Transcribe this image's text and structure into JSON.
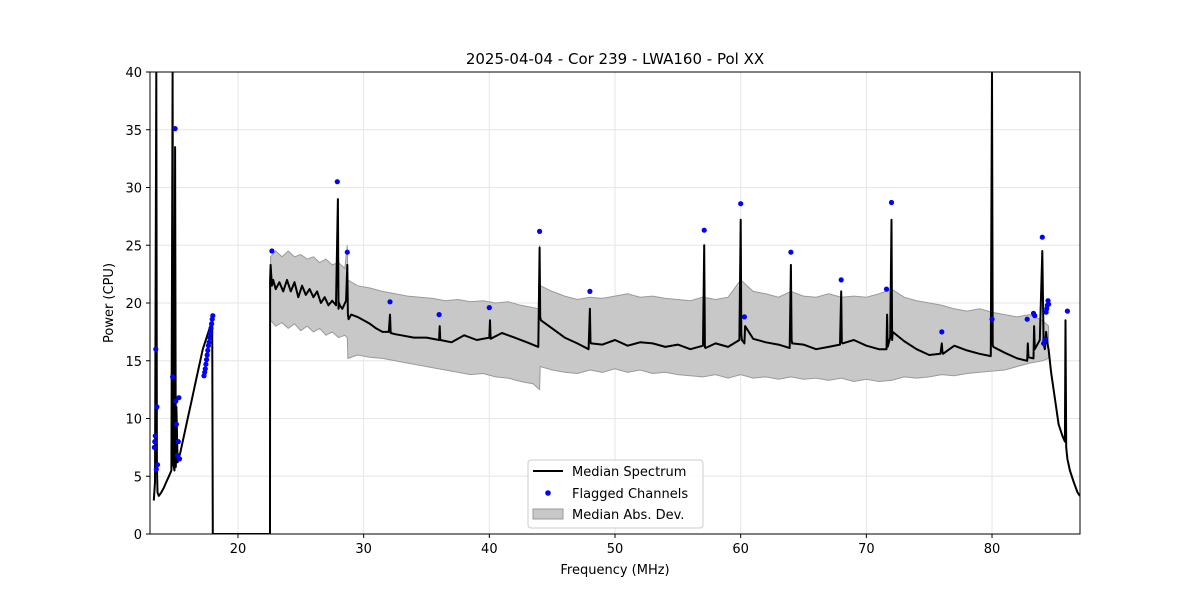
{
  "chart_data": {
    "type": "line",
    "title": "2025-04-04 - Cor 239 - LWA160 - Pol XX",
    "xlabel": "Frequency (MHz)",
    "ylabel": "Power (CPU)",
    "xlim": [
      13.0,
      87.0
    ],
    "ylim": [
      0,
      40
    ],
    "xticks": [
      20,
      30,
      40,
      50,
      60,
      70,
      80
    ],
    "yticks": [
      0,
      5,
      10,
      15,
      20,
      25,
      30,
      35,
      40
    ],
    "xtick_labels": [
      "20",
      "30",
      "40",
      "50",
      "60",
      "70",
      "80"
    ],
    "ytick_labels": [
      "0",
      "5",
      "10",
      "15",
      "20",
      "25",
      "30",
      "35",
      "40"
    ],
    "grid": true,
    "legend_position": "lower-center",
    "colors": {
      "median": "#000000",
      "flagged": "#0000ff",
      "mad_fill": "#c8c8c8",
      "mad_edge": "#9a9a9a",
      "grid": "#e6e6e6"
    },
    "series": [
      {
        "name": "Median Spectrum",
        "x": [
          13.3,
          13.4,
          13.5,
          13.55,
          13.6,
          13.7,
          13.9,
          14.1,
          14.3,
          14.5,
          14.7,
          14.8,
          14.85,
          14.95,
          15.0,
          15.05,
          15.1,
          15.2,
          15.4,
          15.6,
          15.8,
          16.0,
          16.3,
          16.6,
          16.9,
          17.2,
          17.5,
          17.8,
          17.95,
          18.0,
          18.01,
          22.55,
          22.56,
          22.6,
          22.7,
          22.8,
          23.0,
          23.3,
          23.6,
          23.9,
          24.2,
          24.5,
          24.8,
          25.1,
          25.4,
          25.7,
          26.0,
          26.3,
          26.6,
          26.9,
          27.2,
          27.5,
          27.8,
          27.95,
          28.0,
          28.05,
          28.1,
          28.3,
          28.6,
          28.7,
          28.75,
          28.8,
          29.0,
          29.5,
          30.0,
          30.5,
          31.0,
          31.5,
          32.0,
          32.1,
          32.15,
          32.5,
          33.0,
          34.0,
          35.0,
          36.0,
          36.05,
          36.1,
          37.0,
          38.0,
          39.0,
          40.0,
          40.05,
          40.1,
          41.0,
          42.0,
          43.0,
          43.9,
          44.0,
          44.05,
          44.1,
          45.0,
          46.0,
          47.0,
          47.9,
          48.0,
          48.05,
          48.1,
          49.0,
          50.0,
          51.0,
          52.0,
          53.0,
          54.0,
          55.0,
          56.0,
          57.0,
          57.1,
          57.15,
          57.2,
          58.0,
          59.0,
          59.9,
          60.0,
          60.05,
          60.1,
          60.3,
          60.35,
          61.0,
          62.0,
          63.0,
          63.9,
          64.0,
          64.05,
          64.1,
          65.0,
          66.0,
          67.0,
          67.9,
          68.0,
          68.05,
          68.1,
          69.0,
          70.0,
          71.0,
          71.6,
          71.65,
          71.7,
          71.9,
          72.0,
          72.05,
          72.1,
          73.0,
          74.0,
          75.0,
          75.9,
          76.0,
          76.05,
          76.1,
          77.0,
          78.0,
          79.0,
          79.9,
          80.0,
          80.05,
          80.1,
          81.0,
          82.0,
          82.8,
          82.85,
          82.9,
          83.3,
          83.35,
          83.4,
          83.8,
          84.0,
          84.1,
          84.2,
          84.3,
          84.4,
          84.5,
          84.7,
          84.9,
          85.1,
          85.3,
          85.6,
          85.8,
          85.85,
          85.9,
          86.0,
          86.2,
          86.5,
          86.8,
          87.0
        ],
        "y": [
          2.9,
          4.5,
          40.0,
          6.0,
          3.6,
          3.3,
          3.6,
          4.0,
          4.5,
          5.0,
          5.5,
          40.0,
          6.0,
          5.5,
          33.5,
          5.8,
          11.0,
          6.2,
          7.0,
          8.0,
          9.0,
          10.0,
          11.5,
          13.0,
          14.5,
          16.0,
          17.0,
          18.0,
          18.5,
          0.0,
          0.0,
          0.0,
          22.0,
          23.3,
          21.5,
          22.0,
          21.2,
          21.8,
          21.0,
          22.0,
          21.0,
          21.8,
          20.5,
          21.5,
          20.7,
          21.2,
          20.5,
          21.0,
          20.0,
          20.5,
          19.8,
          20.2,
          19.8,
          29.0,
          19.5,
          20.0,
          19.8,
          19.5,
          20.2,
          23.3,
          19.0,
          18.6,
          19.0,
          18.8,
          18.5,
          18.2,
          17.8,
          17.5,
          17.5,
          19.0,
          17.4,
          17.3,
          17.2,
          17.0,
          17.0,
          16.8,
          18.0,
          16.8,
          16.6,
          17.2,
          16.8,
          17.0,
          18.5,
          16.9,
          17.4,
          17.0,
          16.6,
          16.2,
          24.8,
          18.8,
          18.5,
          17.8,
          17.0,
          16.5,
          16.0,
          19.5,
          16.6,
          16.5,
          16.4,
          16.8,
          16.3,
          16.6,
          16.5,
          16.2,
          16.4,
          16.0,
          16.3,
          25.0,
          16.2,
          16.1,
          16.5,
          16.2,
          16.8,
          27.2,
          17.3,
          16.8,
          16.5,
          18.0,
          16.9,
          16.6,
          16.4,
          16.1,
          23.3,
          16.8,
          16.5,
          16.4,
          16.0,
          16.2,
          16.4,
          21.0,
          16.6,
          16.5,
          16.8,
          16.3,
          16.0,
          16.0,
          19.0,
          16.2,
          17.0,
          27.2,
          16.8,
          17.5,
          16.7,
          16.0,
          15.5,
          15.6,
          16.5,
          15.8,
          15.6,
          16.3,
          15.9,
          15.6,
          15.4,
          40.0,
          16.4,
          16.2,
          15.7,
          15.2,
          15.0,
          16.5,
          15.3,
          15.2,
          18.0,
          16.0,
          16.8,
          24.5,
          16.5,
          16.0,
          17.5,
          16.5,
          16.0,
          14.0,
          12.5,
          11.0,
          9.5,
          8.5,
          8.0,
          18.5,
          7.5,
          6.5,
          5.5,
          4.5,
          3.6,
          3.3
        ]
      },
      {
        "name": "Flagged Channels",
        "x": [
          13.35,
          13.38,
          13.42,
          13.46,
          13.5,
          13.55,
          13.6,
          14.8,
          15.0,
          15.05,
          15.1,
          15.2,
          15.25,
          15.3,
          15.35,
          17.3,
          17.35,
          17.4,
          17.45,
          17.5,
          17.55,
          17.6,
          17.65,
          17.7,
          17.75,
          17.8,
          17.85,
          17.9,
          17.95,
          18.0,
          22.7,
          27.9,
          28.7,
          32.1,
          36.0,
          40.0,
          44.0,
          48.0,
          57.1,
          60.0,
          60.3,
          64.0,
          68.0,
          71.6,
          72.0,
          76.0,
          80.0,
          82.8,
          83.3,
          83.4,
          84.0,
          84.1,
          84.2,
          84.3,
          84.35,
          84.4,
          84.45,
          84.5,
          86.0
        ],
        "y": [
          7.5,
          8.0,
          8.5,
          16.0,
          5.6,
          11.0,
          6.0,
          13.6,
          35.1,
          11.5,
          9.5,
          6.8,
          8.0,
          11.8,
          6.5,
          13.7,
          14.0,
          14.3,
          14.7,
          15.1,
          15.5,
          15.9,
          16.3,
          16.6,
          17.0,
          17.4,
          17.8,
          18.2,
          18.6,
          18.9,
          24.5,
          30.5,
          24.4,
          20.1,
          19.0,
          19.6,
          26.2,
          21.0,
          26.3,
          28.6,
          18.8,
          24.4,
          22.0,
          21.2,
          28.7,
          17.5,
          18.6,
          18.6,
          19.1,
          18.9,
          25.7,
          16.5,
          16.8,
          19.2,
          19.5,
          19.8,
          20.2,
          19.9,
          19.3
        ]
      },
      {
        "name": "Median Abs. Dev.",
        "x": [
          22.6,
          23.0,
          23.5,
          24.0,
          24.5,
          25.0,
          25.5,
          26.0,
          26.5,
          27.0,
          27.5,
          28.0,
          28.5,
          28.7,
          28.75,
          29.5,
          30.5,
          31.5,
          32.5,
          33.5,
          34.5,
          35.5,
          36.5,
          37.5,
          38.5,
          39.5,
          40.5,
          41.5,
          42.5,
          43.5,
          43.9,
          44.0,
          44.05,
          45.0,
          46.0,
          47.0,
          48.0,
          49.0,
          50.0,
          51.0,
          52.0,
          53.0,
          54.0,
          55.0,
          56.0,
          57.0,
          58.0,
          59.0,
          60.0,
          61.0,
          62.0,
          63.0,
          64.0,
          65.0,
          66.0,
          67.0,
          68.0,
          69.0,
          70.0,
          71.0,
          72.0,
          73.0,
          74.0,
          75.0,
          76.0,
          77.0,
          78.0,
          79.0,
          80.0,
          81.0,
          82.0,
          83.0,
          84.0,
          84.5
        ],
        "upper": [
          24.0,
          24.5,
          24.0,
          24.5,
          24.0,
          24.2,
          23.8,
          24.0,
          23.5,
          23.8,
          23.3,
          23.5,
          23.0,
          25.0,
          22.0,
          21.5,
          21.3,
          21.0,
          20.8,
          20.6,
          20.5,
          20.4,
          20.2,
          20.3,
          20.1,
          20.2,
          20.0,
          20.1,
          19.8,
          19.6,
          19.5,
          25.0,
          21.5,
          21.0,
          20.6,
          20.3,
          20.5,
          20.4,
          20.6,
          20.8,
          20.5,
          20.6,
          20.4,
          20.3,
          20.2,
          20.5,
          20.3,
          20.5,
          22.0,
          21.0,
          20.8,
          20.5,
          21.0,
          20.6,
          20.5,
          20.8,
          20.5,
          20.6,
          20.5,
          20.8,
          21.2,
          20.5,
          20.2,
          20.0,
          19.8,
          19.5,
          19.3,
          19.5,
          19.2,
          19.0,
          18.8,
          19.0,
          18.5,
          18.0
        ],
        "lower": [
          18.5,
          18.0,
          18.3,
          17.8,
          18.2,
          17.6,
          18.0,
          17.5,
          17.8,
          17.2,
          17.5,
          17.0,
          17.2,
          17.0,
          15.2,
          15.5,
          15.3,
          15.2,
          15.0,
          14.8,
          14.6,
          14.4,
          14.2,
          14.0,
          13.8,
          13.9,
          13.6,
          13.5,
          13.2,
          13.0,
          12.6,
          12.5,
          14.5,
          14.2,
          14.0,
          13.9,
          14.2,
          14.0,
          14.3,
          14.0,
          14.2,
          13.9,
          14.0,
          13.8,
          13.7,
          13.6,
          13.8,
          13.5,
          13.8,
          13.5,
          13.6,
          13.4,
          13.6,
          13.4,
          13.5,
          13.3,
          13.5,
          13.2,
          13.4,
          13.2,
          13.3,
          13.6,
          13.5,
          13.6,
          13.8,
          13.7,
          13.9,
          14.0,
          14.1,
          14.2,
          14.5,
          14.8,
          15.0,
          15.2
        ]
      }
    ]
  },
  "legend": {
    "median_label": "Median Spectrum",
    "flagged_label": "Flagged Channels",
    "mad_label": "Median Abs. Dev."
  }
}
